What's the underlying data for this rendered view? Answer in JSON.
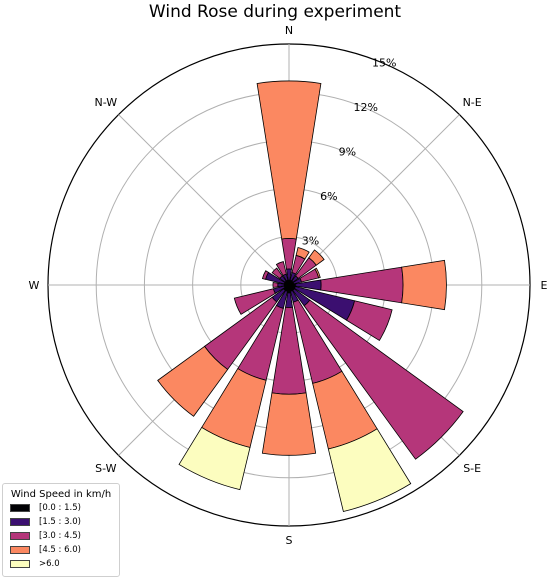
{
  "chart_data": {
    "type": "windrose",
    "title": "Wind Rose during experiment",
    "directions": [
      "N",
      "NNE",
      "NE",
      "ENE",
      "E",
      "ESE",
      "SE",
      "SSE",
      "S",
      "SSW",
      "SW",
      "WSW",
      "W",
      "WNW",
      "NW",
      "NNW"
    ],
    "direction_labels": {
      "N": "N",
      "NE": "N-E",
      "E": "E",
      "SE": "S-E",
      "S": "S",
      "SW": "S-W",
      "W": "W",
      "NW": "N-W"
    },
    "radial_ticks": [
      3,
      6,
      9,
      12,
      15
    ],
    "radial_tick_labels": [
      "3%",
      "6%",
      "9%",
      "12%",
      "15%"
    ],
    "rmax": 15,
    "legend_title": "Wind Speed in km/h",
    "series": [
      {
        "name": "[0.0 : 1.5)",
        "color": "#000004",
        "values": [
          0.3,
          0.3,
          0.3,
          0.3,
          0.4,
          0.4,
          0.4,
          0.4,
          0.5,
          0.4,
          0.4,
          0.3,
          0.3,
          0.3,
          0.3,
          0.3
        ]
      },
      {
        "name": "[1.5 : 3.0)",
        "color": "#3b0f70",
        "values": [
          0.7,
          0.5,
          0.4,
          0.5,
          1.6,
          3.8,
          1.2,
          0.7,
          0.9,
          1.1,
          0.9,
          0.7,
          0.4,
          1.2,
          0.4,
          0.4
        ]
      },
      {
        "name": "[3.0 : 4.5)",
        "color": "#b5367a",
        "values": [
          1.9,
          1.1,
          1.4,
          1.1,
          5.1,
          2.4,
          11.8,
          5.2,
          5.4,
          4.6,
          5.2,
          2.5,
          0.3,
          0.2,
          0.6,
          0.8
        ]
      },
      {
        "name": "[4.5 : 6.0)",
        "color": "#fb8861",
        "values": [
          9.8,
          0.5,
          0.6,
          0.1,
          2.7,
          0.0,
          0.0,
          4.2,
          3.8,
          4.3,
          3.6,
          0.0,
          0.0,
          0.0,
          0.0,
          0.0
        ]
      },
      {
        "name": ">6.0",
        "color": "#fcfdbf",
        "values": [
          0.0,
          0.0,
          0.0,
          0.0,
          0.0,
          0.0,
          0.0,
          4.0,
          0.0,
          2.7,
          0.0,
          0.0,
          0.0,
          0.0,
          0.0,
          0.0
        ]
      }
    ]
  }
}
